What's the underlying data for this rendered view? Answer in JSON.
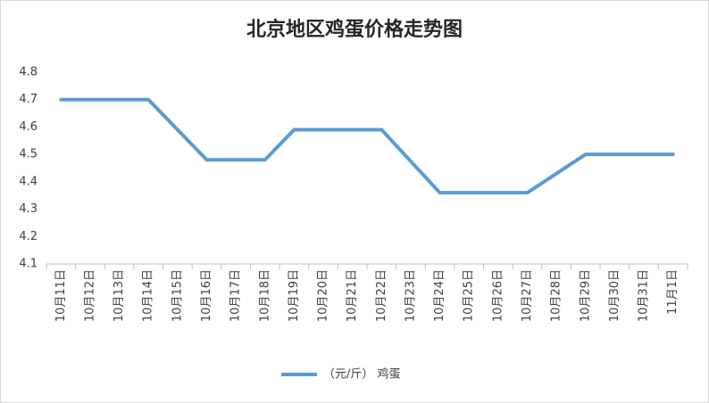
{
  "chart_data": {
    "type": "line",
    "title": "北京地区鸡蛋价格走势图",
    "categories": [
      "10月11日",
      "10月12日",
      "10月13日",
      "10月14日",
      "10月15日",
      "10月16日",
      "10月17日",
      "10月18日",
      "10月19日",
      "10月20日",
      "10月21日",
      "10月22日",
      "10月23日",
      "10月24日",
      "10月25日",
      "10月26日",
      "10月27日",
      "10月28日",
      "10月29日",
      "10月30日",
      "10月31日",
      "11月1日"
    ],
    "series": [
      {
        "name": "（元/斤） 鸡蛋",
        "color": "#5b9bd5",
        "values": [
          4.7,
          4.7,
          4.7,
          4.7,
          4.59,
          4.48,
          4.48,
          4.48,
          4.59,
          4.59,
          4.59,
          4.59,
          4.475,
          4.36,
          4.36,
          4.36,
          4.36,
          4.43,
          4.5,
          4.5,
          4.5,
          4.5
        ]
      }
    ],
    "ylim": [
      4.1,
      4.8
    ],
    "yticks": [
      4.1,
      4.2,
      4.3,
      4.4,
      4.5,
      4.6,
      4.7,
      4.8
    ],
    "grid": false,
    "legend": "bottom"
  }
}
